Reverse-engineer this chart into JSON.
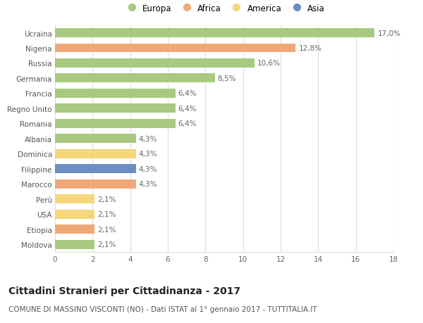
{
  "categories": [
    "Ucraina",
    "Nigeria",
    "Russia",
    "Germania",
    "Francia",
    "Regno Unito",
    "Romania",
    "Albania",
    "Dominica",
    "Filippine",
    "Marocco",
    "Perù",
    "USA",
    "Etiopia",
    "Moldova"
  ],
  "values": [
    17.0,
    12.8,
    10.6,
    8.5,
    6.4,
    6.4,
    6.4,
    4.3,
    4.3,
    4.3,
    4.3,
    2.1,
    2.1,
    2.1,
    2.1
  ],
  "labels": [
    "17,0%",
    "12,8%",
    "10,6%",
    "8,5%",
    "6,4%",
    "6,4%",
    "6,4%",
    "4,3%",
    "4,3%",
    "4,3%",
    "4,3%",
    "2,1%",
    "2,1%",
    "2,1%",
    "2,1%"
  ],
  "continents": [
    "Europa",
    "Africa",
    "Europa",
    "Europa",
    "Europa",
    "Europa",
    "Europa",
    "Europa",
    "America",
    "Asia",
    "Africa",
    "America",
    "America",
    "Africa",
    "Europa"
  ],
  "continent_colors": {
    "Europa": "#a8c97f",
    "Africa": "#f0a878",
    "America": "#f5d67a",
    "Asia": "#6a8fc0"
  },
  "legend_order": [
    "Europa",
    "Africa",
    "America",
    "Asia"
  ],
  "title": "Cittadini Stranieri per Cittadinanza - 2017",
  "subtitle": "COMUNE DI MASSINO VISCONTI (NO) - Dati ISTAT al 1° gennaio 2017 - TUTTITALIA.IT",
  "xlim": [
    0,
    18
  ],
  "xticks": [
    0,
    2,
    4,
    6,
    8,
    10,
    12,
    14,
    16,
    18
  ],
  "background_color": "#ffffff",
  "grid_color": "#dddddd",
  "bar_height": 0.6,
  "title_fontsize": 10,
  "subtitle_fontsize": 7.5,
  "label_fontsize": 7.5,
  "tick_fontsize": 7.5,
  "legend_fontsize": 8.5
}
